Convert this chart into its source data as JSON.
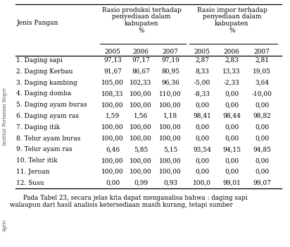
{
  "rows": [
    [
      "1. Daging sapi",
      "97,13",
      "97,17",
      "97,19",
      "2,87",
      "2,83",
      "2,81"
    ],
    [
      "2. Daging Kerbau",
      "91,67",
      "86,67",
      "80,95",
      "8,33",
      "13,33",
      "19,05"
    ],
    [
      "3. Daging kambing",
      "105,00",
      "102,33",
      "96,36",
      "-5,00",
      "-2,33",
      "3,64"
    ],
    [
      "4. Daging domba",
      "108,33",
      "100,00",
      "110,00",
      "-8,33",
      "0,00",
      "-10,00"
    ],
    [
      "5. Daging ayam buras",
      "100,00",
      "100,00",
      "100,00",
      "0,00",
      "0,00",
      "0,00"
    ],
    [
      "6. Daging ayam ras",
      "1,59",
      "1,56",
      "1,18",
      "98,41",
      "98,44",
      "98,82"
    ],
    [
      "7. Daging itik",
      "100,00",
      "100,00",
      "100,00",
      "0,00",
      "0,00",
      "0,00"
    ],
    [
      "8. Telur ayam buras",
      "100,00",
      "100,00",
      "100,00",
      "0,00",
      "0,00",
      "0,00"
    ],
    [
      "9. Telur ayam ras",
      "6,46",
      "5,85",
      "5,15",
      "93,54",
      "94,15",
      "94,85"
    ],
    [
      "10. Telur itik",
      "100,00",
      "100,00",
      "100,00",
      "0,00",
      "0,00",
      "0,00"
    ],
    [
      "11. Jeroan",
      "100,00",
      "100,00",
      "100,00",
      "0,00",
      "0,00",
      "0,00"
    ],
    [
      "12. Susu",
      "0,00",
      "0,99",
      "0,93",
      "100,0",
      "99,01",
      "99,07"
    ]
  ],
  "years": [
    "2005",
    "2006",
    "2007",
    "2005",
    "2006",
    "2007"
  ],
  "header_prod": [
    "Rasio produksi terhadap",
    "penyediaan dalam",
    "kabupaten",
    "%"
  ],
  "header_imp": [
    "Rasio impor terhadap",
    "penyediaan dalam",
    "kabupaten",
    "%"
  ],
  "jenis_pangan": "Jenis Pangan",
  "footer1": "    Pada Tabel 23, secara jelas kita dapat menganalisa bahwa : daging sapi",
  "footer2": "walaupun dari hasil analisis ketersediaan masih kurang, tetapi sumber",
  "watermark_lines": [
    "Institut Pertanian Bogor"
  ],
  "bg_color": "#ffffff",
  "text_color": "#000000",
  "fs": 6.5,
  "fs_footer": 6.3,
  "fs_wm": 4.8
}
